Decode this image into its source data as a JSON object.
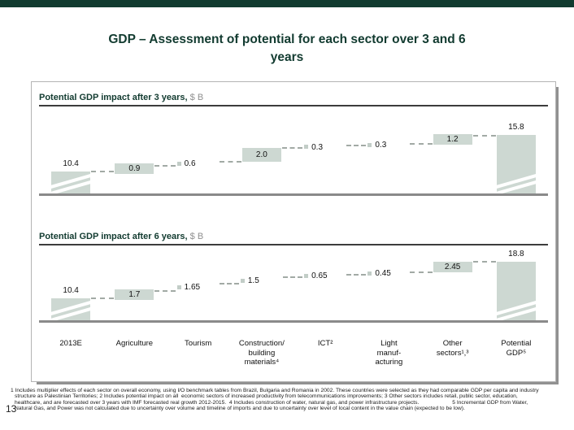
{
  "page": {
    "title": "GDP – Assessment of potential for each sector over 3 and 6\nyears",
    "page_number": "13"
  },
  "colors": {
    "accent_green": "#123b30",
    "bar_fill": "#cdd8d2",
    "tick_fill": "#c2cdc7",
    "baseline_gray": "#8a8a8a",
    "heading_rule": "#3c3c3c",
    "connector_gray": "#a2aaa5",
    "unit_gray": "#8f8f8f",
    "box_border": "#b4b4b4",
    "box_shadow": "#919191"
  },
  "charts_ui": [
    {
      "heading": "Potential GDP impact after 3 years,",
      "unit": " $ B"
    },
    {
      "heading": "Potential GDP impact after 6 years,",
      "unit": " $ B"
    }
  ],
  "categories_display": [
    "2013E",
    "Agriculture",
    "Tourism",
    "Construction/\nbuilding\nmaterials⁴",
    "ICT²",
    "Light\nmanuf-\nacturing",
    "Other\nsectors¹,³",
    "Potential\nGDP⁵"
  ],
  "chart_data": [
    {
      "type": "bar",
      "subtype": "waterfall",
      "title": "Potential GDP impact after 3 years, $ B",
      "categories": [
        "2013E",
        "Agriculture",
        "Tourism",
        "Construction/ building materials⁴",
        "ICT²",
        "Light manufacturing",
        "Other sectors¹,³",
        "Potential GDP⁵"
      ],
      "values": [
        10.4,
        0.9,
        0.6,
        2.0,
        0.3,
        0.3,
        1.2,
        15.8
      ],
      "labels": [
        "10.4",
        "0.9",
        "0.6",
        "2.0",
        "0.3",
        "0.3",
        "1.2",
        "15.8"
      ],
      "bar_styles": [
        "total",
        "inside",
        "tick",
        "inside",
        "tick",
        "tick",
        "inside",
        "total"
      ],
      "axis_break_on_totals": true,
      "ylabel": "$ B",
      "grid": false,
      "legend": false
    },
    {
      "type": "bar",
      "subtype": "waterfall",
      "title": "Potential GDP impact after 6 years, $ B",
      "categories": [
        "2013E",
        "Agriculture",
        "Tourism",
        "Construction/ building materials⁴",
        "ICT²",
        "Light manufacturing",
        "Other sectors¹,³",
        "Potential GDP⁵"
      ],
      "values": [
        10.4,
        1.7,
        1.65,
        1.5,
        0.65,
        0.45,
        2.45,
        18.8
      ],
      "labels": [
        "10.4",
        "1.7",
        "1.65",
        "1.5",
        "0.65",
        "0.45",
        "2.45",
        "18.8"
      ],
      "bar_styles": [
        "total",
        "inside",
        "tick",
        "tick",
        "tick",
        "tick",
        "inside",
        "total"
      ],
      "axis_break_on_totals": true,
      "ylabel": "$ B",
      "grid": false,
      "legend": false
    }
  ],
  "footnote_lines": [
    "1 Includes multiplier effects of each sector on overall economy, using I/O benchmark tables from Brazil, Bulgaria and Romania in 2002. These countries were selected as they had comparable GDP per capita and industry",
    "structure as Palestinian Territories; 2 Includes potential impact on all  economic sectors of increased productivity from telecommunications improvements; 3 Other sectors includes retail, public sector, education,",
    "healthcare, and are forecasted over 3 years with IMF forecasted real growth 2012-2015.  4 Includes construction of water, natural gas, and power infrastructure projects.                      5 Incremental GDP from Water,",
    "Natural Gas, and Power was not calculated due to uncertainty over volume and timeline of imports and due to uncertainty over level of local content in the value chain (expected to be low)."
  ]
}
